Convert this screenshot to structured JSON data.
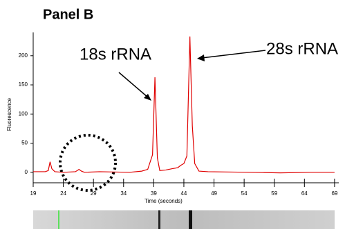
{
  "chart_data": {
    "type": "line",
    "title": "Panel B",
    "x_label": "Time (seconds)",
    "y_label": "Fluorescence",
    "annotations": [
      "18s rRNA",
      "28s rRNA"
    ],
    "x": [
      19,
      21,
      21.5,
      21.8,
      22.1,
      22.6,
      24,
      26,
      26.6,
      27,
      27.5,
      30,
      35,
      37,
      38,
      38.8,
      39.2,
      39.6,
      40,
      41,
      42,
      43,
      43.5,
      44,
      44.5,
      45,
      45.4,
      45.8,
      46.5,
      48,
      55,
      60,
      65,
      69
    ],
    "series": [
      {
        "name": "Fluorescence",
        "color": "#e00000",
        "values": [
          1,
          1,
          3,
          18,
          6,
          1,
          0,
          1,
          5,
          2,
          0,
          1,
          0,
          2,
          5,
          30,
          163,
          25,
          3,
          4,
          6,
          8,
          12,
          15,
          28,
          233,
          80,
          15,
          2,
          1,
          0,
          -1,
          0,
          0
        ]
      }
    ],
    "xlim": [
      19,
      69.7
    ],
    "ylim": [
      -18,
      240
    ],
    "xticks": [
      19,
      24,
      29,
      34,
      39,
      44,
      49,
      54,
      59,
      64,
      69
    ],
    "yticks": [
      0,
      50,
      100,
      150,
      200
    ]
  }
}
